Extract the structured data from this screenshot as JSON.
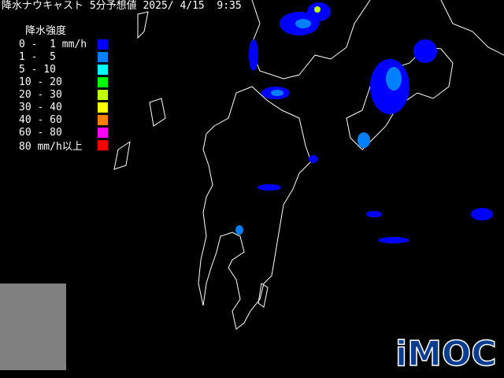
{
  "header": {
    "title": "降水ナウキャスト 5分予想値 2025/ 4/15  9:35"
  },
  "legend": {
    "title": "降水強度",
    "items": [
      {
        "label": "0 -  1 mm/h",
        "color": "#0000ff"
      },
      {
        "label": "1 -  5",
        "color": "#0080ff"
      },
      {
        "label": "5 - 10",
        "color": "#00ffff"
      },
      {
        "label": "10 - 20",
        "color": "#00ff00"
      },
      {
        "label": "20 - 30",
        "color": "#c0ff00"
      },
      {
        "label": "30 - 40",
        "color": "#ffff00"
      },
      {
        "label": "40 - 60",
        "color": "#ff8000"
      },
      {
        "label": "60 - 80",
        "color": "#ff00ff"
      },
      {
        "label": "80 mm/h以上",
        "color": "#ff0000"
      }
    ]
  },
  "logo": {
    "text": "iMOC",
    "color": "#0a3d8f"
  },
  "map": {
    "coast_color": "#ffffff",
    "nodata_color": "#808080"
  }
}
